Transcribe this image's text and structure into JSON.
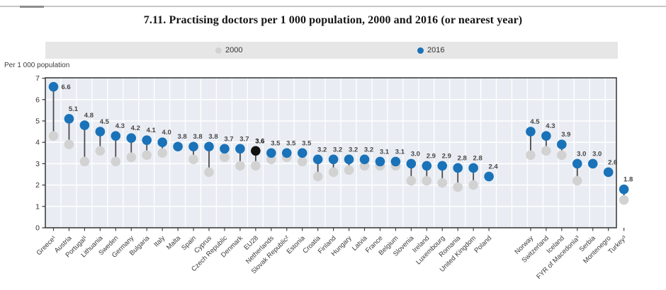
{
  "chart_data": {
    "type": "scatter",
    "subtype": "lollipop-dot-plot",
    "title": "7.11. Practising doctors per 1 000 population, 2000 and 2016 (or nearest year)",
    "ylabel": "Per 1 000 population",
    "xlabel": "",
    "ylim": [
      0,
      7
    ],
    "yticks": [
      0,
      1,
      2,
      3,
      4,
      5,
      6,
      7
    ],
    "grid": true,
    "legend_position": "top",
    "plot_background": "#e9edf3",
    "categories": [
      "Greece¹",
      "Austria",
      "Portugal¹",
      "Lithuania",
      "Sweden",
      "Germany",
      "Bulgaria",
      "Italy",
      "Malta",
      "Spain",
      "Cyprus",
      "Czech Republic",
      "Denmark",
      "EU28",
      "Netherlands",
      "Slovak Republic²",
      "Estonia",
      "Croatia",
      "Finland",
      "Hungary",
      "Latvia",
      "France",
      "Belgium",
      "Slovenia",
      "Ireland",
      "Luxembourg",
      "Romania",
      "United Kingdom",
      "Poland",
      "Norway",
      "Switzerland",
      "Iceland",
      "FYR of Macedonia³",
      "Serbia",
      "Montenegro",
      "Turkey³"
    ],
    "series": [
      {
        "name": "2000",
        "color": "#d2d2d2",
        "values": [
          4.3,
          3.9,
          3.1,
          3.6,
          3.1,
          3.3,
          3.4,
          3.5,
          null,
          3.2,
          2.6,
          3.3,
          2.9,
          2.9,
          3.2,
          3.3,
          3.1,
          2.4,
          2.6,
          2.7,
          2.9,
          2.9,
          2.9,
          2.2,
          2.2,
          2.1,
          1.9,
          2.0,
          null,
          3.4,
          3.6,
          3.4,
          2.2,
          null,
          null,
          1.3
        ]
      },
      {
        "name": "2016",
        "color": "#1a72b8",
        "values": [
          6.6,
          5.1,
          4.8,
          4.5,
          4.3,
          4.2,
          4.1,
          4.0,
          3.8,
          3.8,
          3.8,
          3.7,
          3.7,
          3.6,
          3.5,
          3.5,
          3.5,
          3.2,
          3.2,
          3.2,
          3.2,
          3.1,
          3.1,
          3.0,
          2.9,
          2.9,
          2.8,
          2.8,
          2.4,
          4.5,
          4.3,
          3.9,
          3.0,
          3.0,
          2.6,
          1.8
        ]
      }
    ],
    "value_labels_series": "2016",
    "highlight_category": {
      "name": "EU28",
      "dot_color": "#111111",
      "label_bold": true
    },
    "group_break_index": 29
  },
  "colors": {
    "stem": "#4c4c4c",
    "axis_border": "#3f3f3f",
    "tick_text": "#333333",
    "value_label": "#454545",
    "category_label": "#3a3a3a",
    "legend_band": "#e6e6e6",
    "gridline": "#ffffff"
  }
}
